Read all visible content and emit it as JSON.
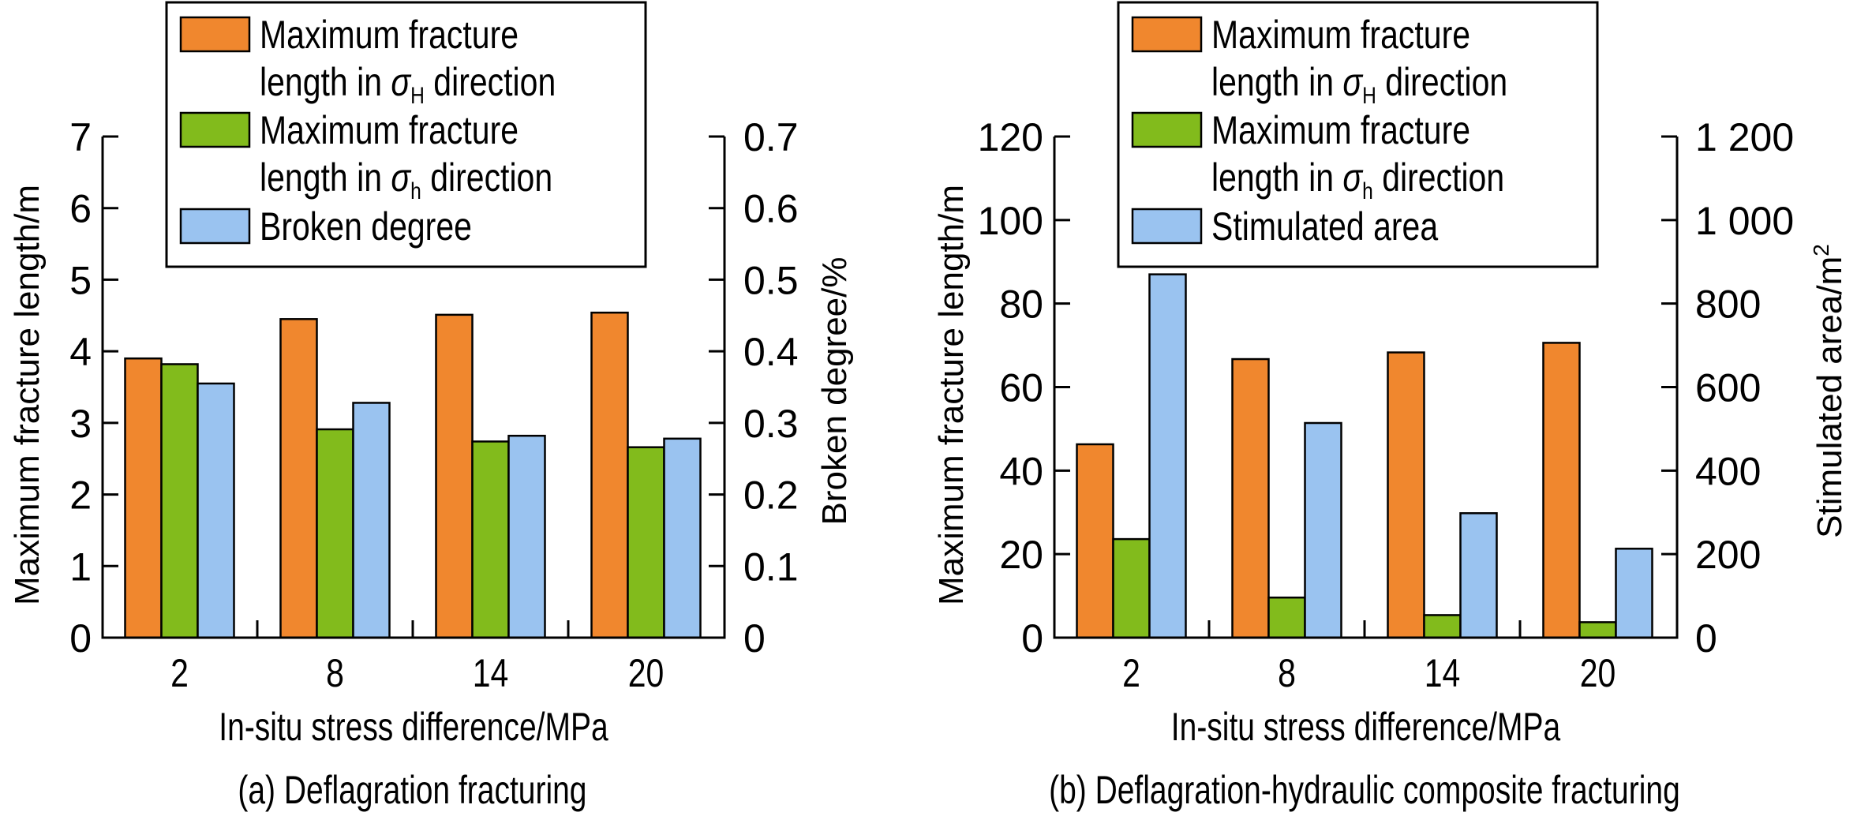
{
  "figure": {
    "panels": [
      "a",
      "b"
    ]
  },
  "colors": {
    "orange": "#F0872E",
    "green": "#82BB1C",
    "blue": "#9AC3F0",
    "axis": "#000000"
  },
  "chart_data": [
    {
      "id": "a",
      "type": "bar",
      "caption": "(a) Deflagration fracturing",
      "xlabel": "In-situ stress difference/MPa",
      "ylabel_left": "Maximum fracture length/m",
      "ylabel_right": "Broken degree/%",
      "categories": [
        "2",
        "8",
        "14",
        "20"
      ],
      "ylim_left": [
        0,
        7
      ],
      "yticks_left": [
        "0",
        "1",
        "2",
        "3",
        "4",
        "5",
        "6",
        "7"
      ],
      "ylim_right": [
        0,
        0.7
      ],
      "yticks_right": [
        "0",
        "0.1",
        "0.2",
        "0.3",
        "0.4",
        "0.5",
        "0.6",
        "0.7"
      ],
      "legend": {
        "placement": "top-center",
        "entries": [
          {
            "line1": "Maximum fracture",
            "line2_pre": "length in ",
            "sigma": "σ",
            "sub": "H",
            "line2_post": " direction",
            "color_key": "orange"
          },
          {
            "line1": "Maximum fracture",
            "line2_pre": "length in ",
            "sigma": "σ",
            "sub": "h",
            "line2_post": " direction",
            "color_key": "green"
          },
          {
            "line1": "Broken degree",
            "color_key": "blue"
          }
        ]
      },
      "series": [
        {
          "name": "Maximum fracture length in σH direction",
          "axis": "left",
          "color_key": "orange",
          "values": [
            3.9,
            4.45,
            4.51,
            4.54
          ]
        },
        {
          "name": "Maximum fracture length in σh direction",
          "axis": "left",
          "color_key": "green",
          "values": [
            3.82,
            2.91,
            2.74,
            2.66
          ]
        },
        {
          "name": "Broken degree",
          "axis": "right",
          "color_key": "blue",
          "values": [
            0.355,
            0.328,
            0.282,
            0.278
          ]
        }
      ],
      "grid": false
    },
    {
      "id": "b",
      "type": "bar",
      "caption": "(b) Deflagration-hydraulic composite fracturing",
      "xlabel": "In-situ stress difference/MPa",
      "ylabel_left": "Maximum fracture length/m",
      "ylabel_right": "Stimulated area/m",
      "ylabel_right_sup": "2",
      "categories": [
        "2",
        "8",
        "14",
        "20"
      ],
      "ylim_left": [
        0,
        120
      ],
      "yticks_left": [
        "0",
        "20",
        "40",
        "60",
        "80",
        "100",
        "120"
      ],
      "ylim_right": [
        0,
        1200
      ],
      "yticks_right": [
        "0",
        "200",
        "400",
        "600",
        "800",
        "1 000",
        "1 200"
      ],
      "legend": {
        "placement": "top-center",
        "entries": [
          {
            "line1": "Maximum fracture",
            "line2_pre": "length in ",
            "sigma": "σ",
            "sub": "H",
            "line2_post": " direction",
            "color_key": "orange"
          },
          {
            "line1": "Maximum fracture",
            "line2_pre": "length in ",
            "sigma": "σ",
            "sub": "h",
            "line2_post": " direction",
            "color_key": "green"
          },
          {
            "line1": "Stimulated area",
            "color_key": "blue"
          }
        ]
      },
      "series": [
        {
          "name": "Maximum fracture length in σH direction",
          "axis": "left",
          "color_key": "orange",
          "values": [
            46.3,
            66.7,
            68.3,
            70.6
          ]
        },
        {
          "name": "Maximum fracture length in σh direction",
          "axis": "left",
          "color_key": "green",
          "values": [
            23.6,
            9.6,
            5.4,
            3.7
          ]
        },
        {
          "name": "Stimulated area",
          "axis": "right",
          "color_key": "blue",
          "values": [
            870,
            514,
            298,
            213
          ]
        }
      ],
      "grid": false
    }
  ]
}
